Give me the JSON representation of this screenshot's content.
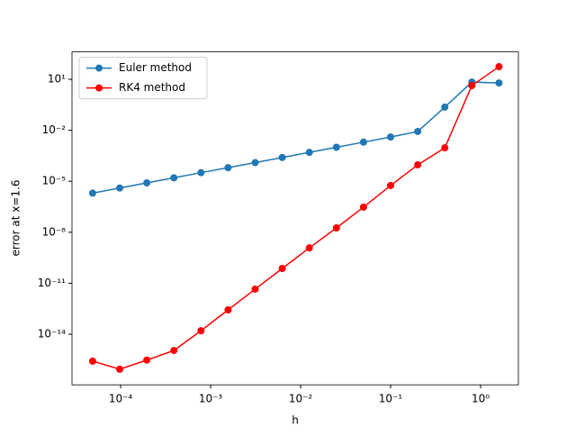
{
  "chart_data": {
    "type": "line",
    "x_label": "h",
    "y_label": "error at x=1.6",
    "x": [
      4.8828125e-05,
      9.765625e-05,
      0.0001953125,
      0.000390625,
      0.00078125,
      0.0015625,
      0.003125,
      0.00625,
      0.0125,
      0.025,
      0.05,
      0.1,
      0.2,
      0.4,
      0.8,
      1.6
    ],
    "series": [
      {
        "name": "Euler method",
        "color": "#1f77b4",
        "values": [
          2e-06,
          4e-06,
          8e-06,
          1.6e-05,
          3.2e-05,
          6.3e-05,
          0.000125,
          0.00025,
          0.0005,
          0.001,
          0.002,
          0.004,
          0.0085,
          0.23,
          6.9,
          6.1
        ]
      },
      {
        "name": "RK4 method",
        "color": "#ff0000",
        "values": [
          2.6e-16,
          8.7e-17,
          3e-16,
          1.1e-15,
          1.6e-14,
          2.7e-13,
          4.5e-12,
          7.4e-11,
          1.2e-09,
          1.8e-08,
          3e-07,
          5.6e-06,
          9.3e-05,
          0.00093,
          4.3,
          55
        ]
      }
    ],
    "xscale": "log",
    "yscale": "log",
    "xlim": [
      2.88e-05,
      2.63
    ],
    "ylim": [
      1.05e-17,
      410
    ],
    "xticks": [
      {
        "value": 0.0001,
        "label": "10⁻⁴"
      },
      {
        "value": 0.001,
        "label": "10⁻³"
      },
      {
        "value": 0.01,
        "label": "10⁻²"
      },
      {
        "value": 0.1,
        "label": "10⁻¹"
      },
      {
        "value": 1,
        "label": "10⁰"
      }
    ],
    "yticks": [
      {
        "value": 1e-14,
        "label": "10⁻¹⁴"
      },
      {
        "value": 1e-11,
        "label": "10⁻¹¹"
      },
      {
        "value": 1e-08,
        "label": "10⁻⁸"
      },
      {
        "value": 1e-05,
        "label": "10⁻⁵"
      },
      {
        "value": 0.01,
        "label": "10⁻²"
      },
      {
        "value": 10,
        "label": "10¹"
      }
    ],
    "legend": "upper left"
  }
}
